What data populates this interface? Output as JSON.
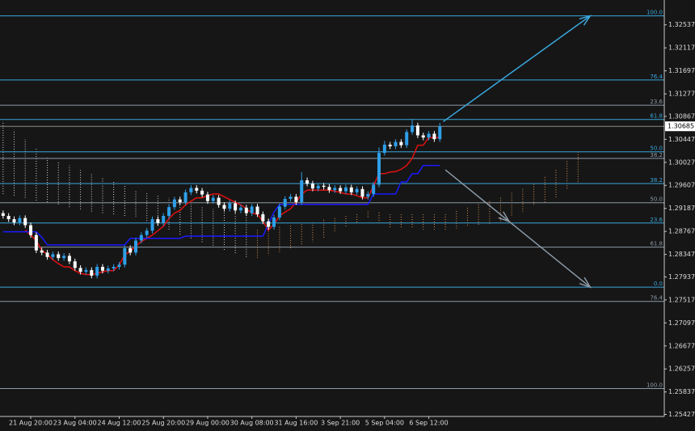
{
  "chart_data": {
    "type": "candlestick",
    "categories": [
      null,
      null,
      null,
      null,
      null,
      "21 Aug 20:00",
      null,
      null,
      null,
      null,
      null,
      null,
      null,
      "23 Aug 04:00",
      null,
      null,
      null,
      null,
      null,
      null,
      null,
      "24 Aug 12:00",
      null,
      null,
      null,
      null,
      null,
      null,
      null,
      "25 Aug 20:00",
      null,
      null,
      null,
      null,
      null,
      null,
      null,
      "29 Aug 00:00",
      null,
      null,
      null,
      null,
      null,
      null,
      null,
      "30 Aug 08:00",
      null,
      null,
      null,
      null,
      null,
      null,
      null,
      "31 Aug 16:00",
      null,
      null,
      null,
      null,
      null,
      null,
      null,
      "3 Sep 21:00",
      null,
      null,
      null,
      null,
      null,
      null,
      null,
      "5 Sep 04:00",
      null,
      null,
      null,
      null,
      null,
      null,
      null,
      "6 Sep 12:00",
      null,
      null
    ],
    "open": [
      1.291,
      1.2905,
      1.2899,
      1.2893,
      1.2901,
      1.2888,
      1.287,
      1.2842,
      1.2838,
      1.283,
      1.2835,
      1.2828,
      1.2832,
      1.2822,
      1.281,
      1.2803,
      1.2806,
      1.2796,
      1.2812,
      1.2805,
      1.2809,
      1.2812,
      1.2816,
      1.2846,
      1.2838,
      1.286,
      1.287,
      1.2878,
      1.2899,
      1.2892,
      1.2905,
      1.2921,
      1.2935,
      1.293,
      1.2948,
      1.2956,
      1.2951,
      1.2944,
      1.2932,
      1.2938,
      1.2925,
      1.2918,
      1.2928,
      1.2915,
      1.292,
      1.291,
      1.2922,
      1.2908,
      1.2895,
      1.2885,
      1.2902,
      1.2922,
      1.2936,
      1.294,
      1.293,
      1.297,
      1.2964,
      1.2955,
      1.296,
      1.2958,
      1.2952,
      1.2956,
      1.295,
      1.2957,
      1.2948,
      1.2954,
      1.294,
      1.2945,
      1.2962,
      1.302,
      1.3035,
      1.3032,
      1.304,
      1.3034,
      1.3058,
      1.307,
      1.3052,
      1.3048,
      1.3055,
      1.3045
    ],
    "high": [
      1.2915,
      1.291,
      1.2904,
      1.2906,
      1.2906,
      1.2893,
      1.2875,
      1.2847,
      1.2843,
      1.284,
      1.284,
      1.2837,
      1.2837,
      1.2827,
      1.2815,
      1.2811,
      1.2811,
      1.2817,
      1.2817,
      1.2814,
      1.2817,
      1.2821,
      1.2851,
      1.2851,
      1.2865,
      1.2875,
      1.2883,
      1.2904,
      1.2904,
      1.291,
      1.2926,
      1.294,
      1.294,
      1.2953,
      1.2961,
      1.2961,
      1.2956,
      1.2949,
      1.2943,
      1.2943,
      1.293,
      1.2933,
      1.2933,
      1.2925,
      1.2925,
      1.2927,
      1.2927,
      1.2913,
      1.29,
      1.2907,
      1.2927,
      1.2941,
      1.2945,
      1.2945,
      1.2985,
      1.2975,
      1.2969,
      1.2965,
      1.2965,
      1.2963,
      1.2961,
      1.2961,
      1.2962,
      1.2962,
      1.2959,
      1.2959,
      1.295,
      1.2967,
      1.303,
      1.3042,
      1.304,
      1.3045,
      1.3045,
      1.3063,
      1.3082,
      1.3075,
      1.3057,
      1.306,
      1.306,
      1.3075
    ],
    "low": [
      1.29,
      1.2894,
      1.2888,
      1.2888,
      1.2883,
      1.2865,
      1.2837,
      1.2833,
      1.2825,
      1.2825,
      1.2823,
      1.2823,
      1.2817,
      1.2805,
      1.2798,
      1.2798,
      1.2791,
      1.2791,
      1.28,
      1.28,
      1.2804,
      1.2807,
      1.2811,
      1.2833,
      1.2833,
      1.2855,
      1.2865,
      1.2873,
      1.2887,
      1.2887,
      1.29,
      1.2916,
      1.2925,
      1.2925,
      1.2943,
      1.2946,
      1.2939,
      1.2927,
      1.2927,
      1.292,
      1.2913,
      1.2913,
      1.291,
      1.291,
      1.2905,
      1.2905,
      1.2903,
      1.289,
      1.288,
      1.288,
      1.2897,
      1.2917,
      1.2931,
      1.2925,
      1.2925,
      1.2959,
      1.295,
      1.295,
      1.2953,
      1.2947,
      1.2947,
      1.2945,
      1.2945,
      1.2943,
      1.2943,
      1.2935,
      1.2935,
      1.294,
      1.2957,
      1.3015,
      1.3027,
      1.3027,
      1.3029,
      1.3029,
      1.3053,
      1.3047,
      1.3043,
      1.3043,
      1.304,
      1.304
    ],
    "close": [
      1.2905,
      1.2899,
      1.2893,
      1.2901,
      1.2888,
      1.287,
      1.2842,
      1.2838,
      1.283,
      1.2835,
      1.2828,
      1.2832,
      1.2822,
      1.281,
      1.2803,
      1.2806,
      1.2796,
      1.2812,
      1.2805,
      1.2809,
      1.2812,
      1.2816,
      1.2846,
      1.2838,
      1.286,
      1.287,
      1.2878,
      1.2899,
      1.2892,
      1.2905,
      1.2921,
      1.2935,
      1.293,
      1.2948,
      1.2956,
      1.2951,
      1.2944,
      1.2932,
      1.2938,
      1.2925,
      1.2918,
      1.2928,
      1.2915,
      1.292,
      1.291,
      1.2922,
      1.2908,
      1.2895,
      1.2885,
      1.2902,
      1.2922,
      1.2936,
      1.294,
      1.293,
      1.297,
      1.2964,
      1.2955,
      1.296,
      1.2958,
      1.2952,
      1.2956,
      1.295,
      1.2957,
      1.2948,
      1.2954,
      1.294,
      1.2945,
      1.2962,
      1.302,
      1.3035,
      1.3032,
      1.304,
      1.3034,
      1.3058,
      1.307,
      1.3052,
      1.3048,
      1.3055,
      1.3045,
      1.30685
    ],
    "up_color": "#2f9fe8",
    "down_color": "#ffffff",
    "ylim": [
      1.2539,
      1.3299
    ],
    "yticks": [
      1.32537,
      1.32117,
      1.31697,
      1.31277,
      1.30867,
      1.30447,
      1.30027,
      1.29607,
      1.29187,
      1.28767,
      1.28347,
      1.27937,
      1.27517,
      1.27097,
      1.26677,
      1.26257,
      1.25837,
      1.25427
    ],
    "xlim": [
      -0.56,
      119.6
    ],
    "grid": false,
    "current_price": 1.30685,
    "lines": [
      {
        "color": "#e01010",
        "values": [
          null,
          null,
          null,
          null,
          1.2879,
          1.287,
          1.286,
          1.2842,
          1.2835,
          1.2825,
          1.2818,
          1.2812,
          1.2812,
          1.2805,
          1.28,
          1.2798,
          1.2798,
          1.28,
          1.2803,
          1.2805,
          1.2805,
          1.2815,
          1.2834,
          1.284,
          1.285,
          1.2858,
          1.2864,
          1.287,
          1.2878,
          1.2886,
          1.29,
          1.291,
          1.2915,
          1.2925,
          1.2932,
          1.2938,
          1.2938,
          1.2942,
          1.2945,
          1.2945,
          1.294,
          1.2935,
          1.293,
          1.2925,
          1.2918,
          1.291,
          1.2908,
          1.2895,
          1.2879,
          1.289,
          1.2905,
          1.2912,
          1.2918,
          1.293,
          1.2945,
          1.2952,
          1.2952,
          1.2952,
          1.2952,
          1.2952,
          1.295,
          1.2948,
          1.2945,
          1.2945,
          1.2942,
          1.2938,
          1.2938,
          1.296,
          1.2982,
          1.2982,
          1.2985,
          1.2986,
          1.299,
          1.2997,
          1.301,
          1.3034,
          1.3034,
          1.3048,
          1.3048,
          1.3048
        ]
      },
      {
        "color": "#1a1aff",
        "values": [
          1.2876,
          1.2876,
          1.2876,
          1.2876,
          1.2876,
          1.2876,
          1.2876,
          1.2866,
          1.2852,
          1.2852,
          1.2852,
          1.2852,
          1.2852,
          1.2852,
          1.2852,
          1.2852,
          1.2852,
          1.2852,
          1.2852,
          1.2852,
          1.2852,
          1.2852,
          1.2852,
          1.2864,
          1.2864,
          1.2864,
          1.2864,
          1.2864,
          1.2864,
          1.2864,
          1.2864,
          1.2864,
          1.2864,
          1.2868,
          1.2868,
          1.2868,
          1.2868,
          1.2868,
          1.2868,
          1.2868,
          1.2868,
          1.2868,
          1.2868,
          1.2868,
          1.2868,
          1.2868,
          1.2868,
          1.2868,
          1.289,
          1.2912,
          1.2926,
          1.2926,
          1.2926,
          1.2926,
          1.2926,
          1.2926,
          1.2926,
          1.2926,
          1.2926,
          1.2926,
          1.2926,
          1.2926,
          1.2926,
          1.2926,
          1.2926,
          1.2926,
          1.2926,
          1.2945,
          1.2945,
          1.2945,
          1.2945,
          1.2945,
          1.2967,
          1.2967,
          1.2982,
          1.2982,
          1.2997,
          1.2997,
          1.2997,
          1.2997
        ]
      }
    ],
    "cloud": {
      "bullish_color": "#d8935a",
      "bearish_color": "#d4d4d4",
      "x": [
        0,
        2,
        4,
        6,
        8,
        10,
        12,
        14,
        16,
        18,
        20,
        22,
        24,
        26,
        28,
        30,
        32,
        34,
        36,
        38,
        40,
        42,
        44,
        46,
        48,
        50,
        52,
        54,
        56,
        58,
        60,
        62,
        64,
        66,
        68,
        70,
        72,
        74,
        76,
        78,
        80,
        82,
        84,
        86,
        88,
        90,
        92,
        94,
        96,
        98,
        100,
        102,
        104
      ],
      "span_a": [
        1.2945,
        1.2942,
        1.2938,
        1.2933,
        1.293,
        1.2926,
        1.2921,
        1.2917,
        1.2913,
        1.291,
        1.2908,
        1.2905,
        1.2904,
        1.2896,
        1.2887,
        1.288,
        1.2871,
        1.2864,
        1.2857,
        1.2851,
        1.2843,
        1.2837,
        1.283,
        1.2879,
        1.2882,
        1.2885,
        1.2887,
        1.289,
        1.2893,
        1.2898,
        1.2901,
        1.2905,
        1.2908,
        1.2913,
        1.2911,
        1.2908,
        1.2908,
        1.2908,
        1.2908,
        1.2908,
        1.2908,
        1.2914,
        1.292,
        1.2926,
        1.2932,
        1.2938,
        1.2947,
        1.2954,
        1.2963,
        1.2976,
        1.2989,
        1.3005,
        1.3022
      ],
      "span_b": [
        1.3078,
        1.3062,
        1.3045,
        1.3028,
        1.3011,
        1.3004,
        1.2997,
        1.2989,
        1.2982,
        1.2975,
        1.2967,
        1.296,
        1.2952,
        1.2948,
        1.2942,
        1.2938,
        1.2933,
        1.2927,
        1.2923,
        1.2918,
        1.2916,
        1.2913,
        1.2908,
        1.2827,
        1.2833,
        1.2839,
        1.2846,
        1.2851,
        1.2857,
        1.2865,
        1.2876,
        1.2885,
        1.2893,
        1.2901,
        1.2892,
        1.2883,
        1.2883,
        1.2882,
        1.288,
        1.288,
        1.2879,
        1.2882,
        1.2885,
        1.2887,
        1.289,
        1.2893,
        1.2904,
        1.2913,
        1.2923,
        1.293,
        1.2938,
        1.2952,
        1.2967
      ]
    },
    "fibonacci": [
      {
        "color": "#3aa6dc",
        "labels": [
          "100.0",
          "76.4",
          "61.8",
          "50.0",
          "38.2",
          "23.6",
          "0.0"
        ],
        "prices": [
          1.327,
          1.3153,
          1.3081,
          1.3022,
          1.2964,
          1.2892,
          1.2775
        ]
      },
      {
        "color": "#8c9aa6",
        "labels": [
          "23.6",
          "38.2",
          "50.0",
          "61.8",
          "76.4",
          "100.0"
        ],
        "prices": [
          1.3107,
          1.301,
          1.2929,
          1.2848,
          1.2749,
          1.259
        ]
      }
    ],
    "trendlines": [
      {
        "color": "#3aa6dc",
        "x": [
          79.6,
          106.2
        ],
        "y": [
          1.3077,
          1.327
        ]
      },
      {
        "color": "#8c9aa6",
        "x": [
          80,
          106.2
        ],
        "y": [
          1.2989,
          1.2775
        ]
      }
    ]
  }
}
